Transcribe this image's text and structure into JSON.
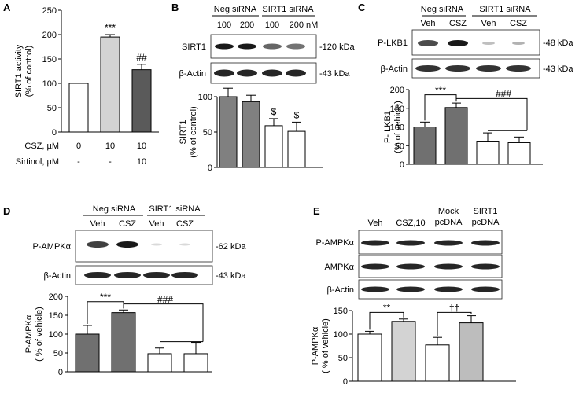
{
  "chart_data": [
    {
      "panel": "A",
      "type": "bar",
      "ylabel": [
        "SIRT1 activity",
        "(% of control)"
      ],
      "ylim": [
        0,
        250
      ],
      "yticks": [
        0,
        50,
        100,
        150,
        200,
        250
      ],
      "row_labels": [
        {
          "label": "CSZ, µM",
          "values": [
            "0",
            "10",
            "10"
          ]
        },
        {
          "label": "Sirtinol, µM",
          "values": [
            "-",
            "-",
            "10"
          ]
        }
      ],
      "values": [
        100,
        195,
        128
      ],
      "errors": [
        0,
        5,
        11
      ],
      "colors": [
        "#ffffff",
        "#d3d3d3",
        "#5a5a5a"
      ],
      "annotations": [
        "",
        "***",
        "##"
      ]
    },
    {
      "panel": "B",
      "type": "bar",
      "group_labels": [
        "Neg siRNA",
        "SIRT1 siRNA"
      ],
      "lane_labels": [
        "100",
        "200",
        "100",
        "200 nM"
      ],
      "blot_rows": [
        {
          "label": "SIRT1",
          "kda": "-120 kDa"
        },
        {
          "label": "β-Actin",
          "kda": "-43 kDa"
        }
      ],
      "ylabel": [
        "SIRT1",
        "(% of control)"
      ],
      "ylim": [
        0,
        100
      ],
      "yticks": [
        0,
        50,
        100
      ],
      "values": [
        100,
        93,
        59,
        51
      ],
      "errors": [
        12,
        9,
        10,
        13
      ],
      "colors": [
        "#808080",
        "#808080",
        "#ffffff",
        "#ffffff"
      ],
      "annotations": [
        "",
        "",
        "$",
        "$"
      ]
    },
    {
      "panel": "C",
      "type": "bar",
      "group_labels": [
        "Neg siRNA",
        "SIRT1 siRNA"
      ],
      "lane_labels": [
        "Veh",
        "CSZ",
        "Veh",
        "CSZ"
      ],
      "blot_rows": [
        {
          "label": "P-LKB1",
          "kda": "-48 kDa"
        },
        {
          "label": "β-Actin",
          "kda": "-43 kDa"
        }
      ],
      "ylabel": [
        "P- LKB1",
        "(% of vehicle)"
      ],
      "ylim": [
        0,
        200
      ],
      "yticks": [
        0,
        50,
        100,
        150,
        200
      ],
      "values": [
        100,
        152,
        62,
        58
      ],
      "errors": [
        13,
        12,
        22,
        15
      ],
      "colors": [
        "#707070",
        "#707070",
        "#ffffff",
        "#ffffff"
      ],
      "annotations": [
        "***",
        "###"
      ]
    },
    {
      "panel": "D",
      "type": "bar",
      "group_labels": [
        "Neg siRNA",
        "SIRT1 siRNA"
      ],
      "lane_labels": [
        "Veh",
        "CSZ",
        "Veh",
        "CSZ"
      ],
      "blot_rows": [
        {
          "label": "P-AMPKα",
          "kda": "-62 kDa"
        },
        {
          "label": "β-Actin",
          "kda": "-43 kDa"
        }
      ],
      "ylabel": [
        "P-AMPKα",
        "( % of vehicle)"
      ],
      "ylim": [
        0,
        200
      ],
      "yticks": [
        0,
        50,
        100,
        150,
        200
      ],
      "values": [
        100,
        157,
        48,
        48
      ],
      "errors": [
        23,
        7,
        15,
        30
      ],
      "colors": [
        "#707070",
        "#707070",
        "#ffffff",
        "#ffffff"
      ],
      "annotations": [
        "***",
        "###"
      ]
    },
    {
      "panel": "E",
      "type": "bar",
      "lane_labels": [
        "Veh",
        "CSZ,10",
        "Mock\npcDNA",
        "SIRT1\npcDNA"
      ],
      "blot_rows": [
        {
          "label": "P-AMPKα",
          "kda": ""
        },
        {
          "label": "AMPKα",
          "kda": ""
        },
        {
          "label": "β-Actin",
          "kda": ""
        }
      ],
      "ylabel": [
        "P-AMPKα",
        "( % of vehicle)"
      ],
      "ylim": [
        0,
        150
      ],
      "yticks": [
        0,
        50,
        100,
        150
      ],
      "values": [
        100,
        127,
        77,
        124
      ],
      "errors": [
        6,
        5,
        16,
        15
      ],
      "colors": [
        "#ffffff",
        "#d3d3d3",
        "#ffffff",
        "#bdbdbd"
      ],
      "annotations": [
        "**",
        "††"
      ]
    }
  ]
}
